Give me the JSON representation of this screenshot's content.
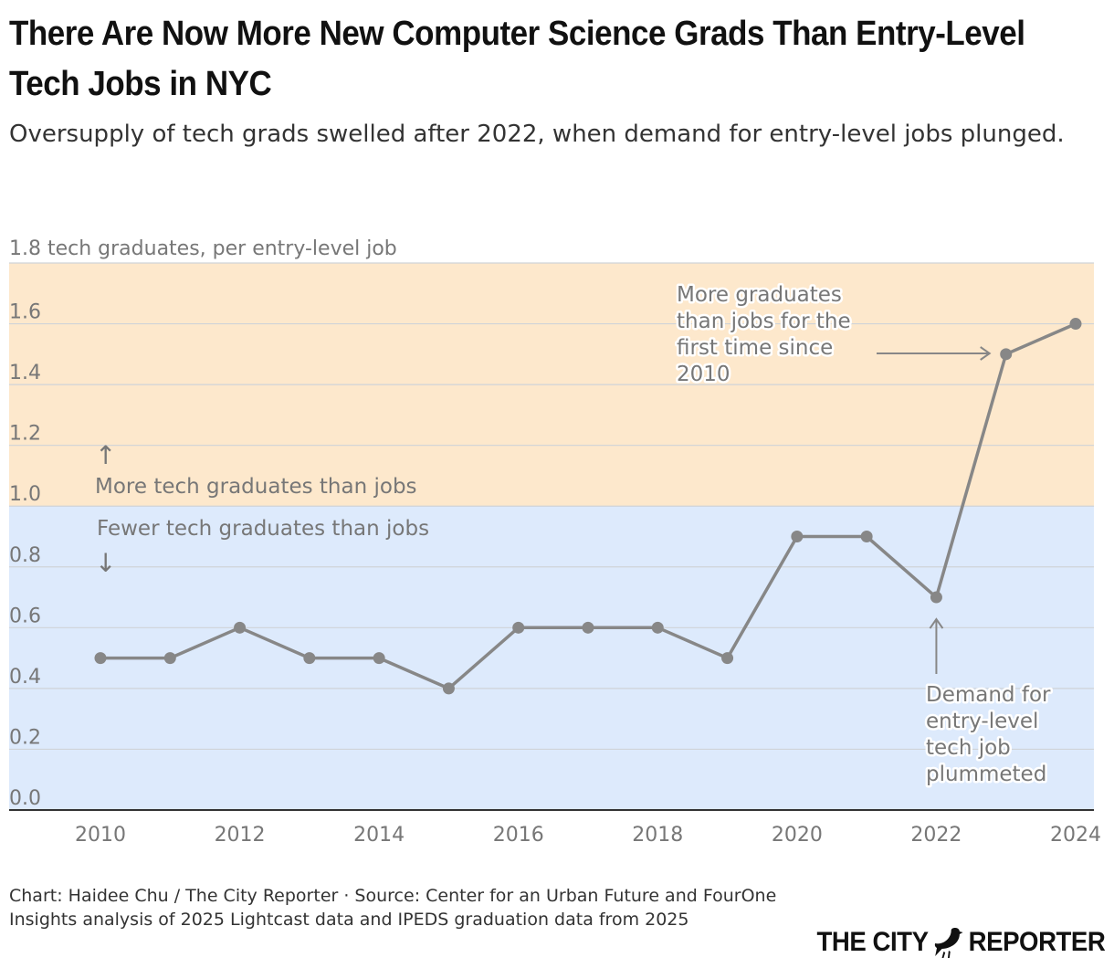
{
  "title": "There Are Now More New Computer Science Grads Than Entry-Level Tech Jobs in NYC",
  "subtitle": "Oversupply of tech grads swelled after 2022, when demand for entry-level jobs plunged.",
  "colors": {
    "above_band": "#fde8cc",
    "below_band": "#ddeafc",
    "line": "#878787",
    "grid": "#cfd3d8",
    "text": "#777777"
  },
  "chart_data": {
    "type": "line",
    "title": "There Are Now More New Computer Science Grads Than Entry-Level Tech Jobs in NYC",
    "ylabel": "tech graduates, per entry-level job",
    "y_top_label": "1.8 tech graduates, per entry-level job",
    "ylim": [
      0,
      1.8
    ],
    "xlim": [
      2010,
      2024
    ],
    "y_ticks": [
      "0.0",
      "0.2",
      "0.4",
      "0.6",
      "0.8",
      "1.0",
      "1.2",
      "1.4",
      "1.6"
    ],
    "x_ticks": [
      "2010",
      "2012",
      "2014",
      "2016",
      "2018",
      "2020",
      "2022",
      "2024"
    ],
    "threshold": 1.0,
    "grid": true,
    "x": [
      2010,
      2011,
      2012,
      2013,
      2014,
      2015,
      2016,
      2017,
      2018,
      2019,
      2020,
      2021,
      2022,
      2023,
      2024
    ],
    "series": [
      {
        "values": [
          0.5,
          0.5,
          0.6,
          0.5,
          0.5,
          0.4,
          0.6,
          0.6,
          0.6,
          0.5,
          0.9,
          0.9,
          0.7,
          1.5,
          1.6
        ]
      }
    ],
    "annotations": {
      "above_arrow": "↑",
      "above_label": "More tech graduates than jobs",
      "below_label": "Fewer tech graduates than jobs",
      "below_arrow": "↓",
      "peak_note": [
        "More graduates",
        "than jobs for the",
        "first time since",
        "2010"
      ],
      "drop_note": [
        "Demand for",
        "entry-level",
        "tech job",
        "plummeted"
      ]
    }
  },
  "footer": {
    "credit": "Chart: Haidee Chu / The City Reporter · Source: Center for an Urban Future and FourOne Insights analysis of 2025 Lightcast data and IPEDS graduation data from 2025",
    "brand_left": "THE CITY",
    "brand_right": "REPORTER",
    "brand_icon": "pigeon-icon"
  }
}
